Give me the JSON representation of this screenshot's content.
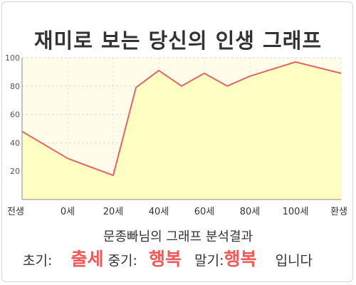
{
  "title": "재미로 보는 당신의 인생 그래프",
  "chart_data": {
    "type": "area",
    "x_labels": [
      "전생",
      "0세",
      "20세",
      "40세",
      "60세",
      "80세",
      "100세",
      "환생"
    ],
    "y_ticks": [
      20,
      40,
      60,
      80,
      100
    ],
    "ylim": [
      0,
      100
    ],
    "grid": true,
    "x": [
      "전생",
      "0세",
      "20세",
      "30세",
      "40세",
      "50세",
      "60세",
      "70세",
      "80세",
      "90세",
      "100세",
      "환생"
    ],
    "values": [
      48,
      29,
      17,
      79,
      91,
      80,
      89,
      80,
      87,
      92,
      97,
      89
    ],
    "colors": {
      "line": "#e06666",
      "fill": "#ffffc4",
      "plot_bg": "#fffdea"
    }
  },
  "analysis_title": "문종빠님의 그래프 분석결과",
  "result": {
    "early_label": "초기:",
    "early_value": "출세",
    "mid_label": "중기:",
    "mid_value": "행복",
    "late_label": "말기:",
    "late_value": "행복",
    "ending": "입니다"
  }
}
